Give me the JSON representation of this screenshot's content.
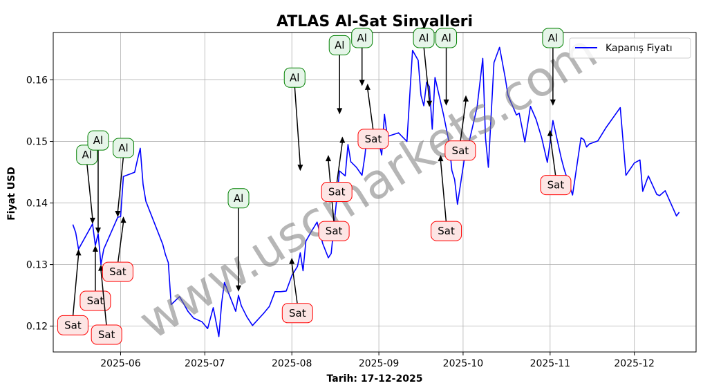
{
  "chart_data": {
    "type": "line",
    "title": "ATLAS Al-Sat Sinyalleri",
    "xlabel": "Tarih: 17-12-2025",
    "ylabel": "Fiyat USD",
    "legend": {
      "placement": "top-right",
      "entries": [
        "Kapanış Fiyatı"
      ]
    },
    "watermark": "www.uscmarkets.com",
    "grid": true,
    "line_color": "#0000ff",
    "xlim": [
      "2025-05-08",
      "2025-12-23"
    ],
    "ylim": [
      0.1158,
      0.1677
    ],
    "x_ticks": [
      "2025-06",
      "2025-07",
      "2025-08",
      "2025-09",
      "2025-10",
      "2025-11",
      "2025-12"
    ],
    "y_ticks": [
      0.12,
      0.13,
      0.14,
      0.15,
      0.16
    ],
    "series": [
      {
        "name": "Kapanış Fiyatı",
        "x": [
          "2025-05-15",
          "2025-05-16",
          "2025-05-17",
          "2025-05-22",
          "2025-05-23",
          "2025-05-24",
          "2025-05-25",
          "2025-05-26",
          "2025-05-31",
          "2025-06-01",
          "2025-06-02",
          "2025-06-06",
          "2025-06-07",
          "2025-06-08",
          "2025-06-09",
          "2025-06-10",
          "2025-06-16",
          "2025-06-17",
          "2025-06-18",
          "2025-06-19",
          "2025-06-22",
          "2025-06-25",
          "2025-06-27",
          "2025-06-30",
          "2025-07-02",
          "2025-07-04",
          "2025-07-06",
          "2025-07-07",
          "2025-07-08",
          "2025-07-12",
          "2025-07-13",
          "2025-07-14",
          "2025-07-16",
          "2025-07-18",
          "2025-07-22",
          "2025-07-24",
          "2025-07-26",
          "2025-07-28",
          "2025-07-30",
          "2025-08-01",
          "2025-08-03",
          "2025-08-04",
          "2025-08-05",
          "2025-08-06",
          "2025-08-08",
          "2025-08-10",
          "2025-08-12",
          "2025-08-14",
          "2025-08-15",
          "2025-08-18",
          "2025-08-20",
          "2025-08-21",
          "2025-08-22",
          "2025-08-24",
          "2025-08-26",
          "2025-08-27",
          "2025-08-28",
          "2025-08-29",
          "2025-09-01",
          "2025-09-02",
          "2025-09-03",
          "2025-09-04",
          "2025-09-08",
          "2025-09-11",
          "2025-09-13",
          "2025-09-15",
          "2025-09-16",
          "2025-09-17",
          "2025-09-18",
          "2025-09-19",
          "2025-09-20",
          "2025-09-21",
          "2025-09-24",
          "2025-09-26",
          "2025-09-27",
          "2025-09-28",
          "2025-09-29",
          "2025-10-02",
          "2025-10-03",
          "2025-10-06",
          "2025-10-08",
          "2025-10-09",
          "2025-10-10",
          "2025-10-12",
          "2025-10-14",
          "2025-10-16",
          "2025-10-17",
          "2025-10-20",
          "2025-10-21",
          "2025-10-23",
          "2025-10-25",
          "2025-10-27",
          "2025-10-29",
          "2025-10-31",
          "2025-11-02",
          "2025-11-05",
          "2025-11-06",
          "2025-11-09",
          "2025-11-12",
          "2025-11-13",
          "2025-11-14",
          "2025-11-15",
          "2025-11-18",
          "2025-11-21",
          "2025-11-26",
          "2025-11-28",
          "2025-12-01",
          "2025-12-03",
          "2025-12-04",
          "2025-12-06",
          "2025-12-09",
          "2025-12-10",
          "2025-12-12",
          "2025-12-16",
          "2025-12-17"
        ],
        "values": [
          0.1365,
          0.1352,
          0.1325,
          0.1366,
          0.1331,
          0.135,
          0.13,
          0.1325,
          0.1377,
          0.1378,
          0.1443,
          0.145,
          0.147,
          0.1489,
          0.143,
          0.1403,
          0.1333,
          0.1316,
          0.1303,
          0.1235,
          0.1248,
          0.1224,
          0.1213,
          0.1207,
          0.1196,
          0.123,
          0.1183,
          0.1238,
          0.1271,
          0.1224,
          0.125,
          0.1233,
          0.1215,
          0.1201,
          0.1221,
          0.1232,
          0.1256,
          0.1256,
          0.1257,
          0.1282,
          0.1297,
          0.1319,
          0.129,
          0.1338,
          0.1354,
          0.1369,
          0.1334,
          0.1311,
          0.1318,
          0.1452,
          0.1444,
          0.1495,
          0.1467,
          0.1458,
          0.1445,
          0.1476,
          0.1519,
          0.1497,
          0.1499,
          0.1478,
          0.1544,
          0.1508,
          0.1514,
          0.15,
          0.1648,
          0.1632,
          0.1575,
          0.1558,
          0.1596,
          0.1589,
          0.152,
          0.1604,
          0.1544,
          0.1499,
          0.1453,
          0.1438,
          0.1398,
          0.1488,
          0.1496,
          0.1556,
          0.1635,
          0.1505,
          0.1458,
          0.1628,
          0.1653,
          0.1604,
          0.1575,
          0.1543,
          0.1546,
          0.1499,
          0.1557,
          0.1536,
          0.1506,
          0.1466,
          0.1534,
          0.1472,
          0.1455,
          0.1413,
          0.1506,
          0.1503,
          0.1491,
          0.1496,
          0.1501,
          0.1523,
          0.1555,
          0.1445,
          0.1465,
          0.147,
          0.1419,
          0.1444,
          0.1414,
          0.1412,
          0.142,
          0.1379,
          0.1385
        ]
      }
    ],
    "annotations": [
      {
        "label": "Al",
        "type": "buy",
        "x": "2025-05-22",
        "y": 0.1366
      },
      {
        "label": "Al",
        "type": "buy",
        "x": "2025-05-24",
        "y": 0.135
      },
      {
        "label": "Al",
        "type": "buy",
        "x": "2025-05-31",
        "y": 0.1377
      },
      {
        "label": "Sat",
        "type": "sell",
        "x": "2025-05-17",
        "y": 0.1325
      },
      {
        "label": "Sat",
        "type": "sell",
        "x": "2025-05-23",
        "y": 0.1331
      },
      {
        "label": "Sat",
        "type": "sell",
        "x": "2025-05-25",
        "y": 0.13
      },
      {
        "label": "Sat",
        "type": "sell",
        "x": "2025-06-02",
        "y": 0.1378
      },
      {
        "label": "Al",
        "type": "buy",
        "x": "2025-07-13",
        "y": 0.1256
      },
      {
        "label": "Sat",
        "type": "sell",
        "x": "2025-08-01",
        "y": 0.1311
      },
      {
        "label": "Al",
        "type": "buy",
        "x": "2025-08-04",
        "y": 0.1452
      },
      {
        "label": "Al",
        "type": "buy",
        "x": "2025-08-18",
        "y": 0.1544
      },
      {
        "label": "Sat",
        "type": "sell",
        "x": "2025-08-14",
        "y": 0.1478
      },
      {
        "label": "Sat",
        "type": "sell",
        "x": "2025-08-19",
        "y": 0.1508
      },
      {
        "label": "Al",
        "type": "buy",
        "x": "2025-08-26",
        "y": 0.159
      },
      {
        "label": "Sat",
        "type": "sell",
        "x": "2025-08-28",
        "y": 0.1594
      },
      {
        "label": "Al",
        "type": "buy",
        "x": "2025-09-19",
        "y": 0.1556
      },
      {
        "label": "Al",
        "type": "buy",
        "x": "2025-09-25",
        "y": 0.1558
      },
      {
        "label": "Sat",
        "type": "sell",
        "x": "2025-09-23",
        "y": 0.1478
      },
      {
        "label": "Sat",
        "type": "sell",
        "x": "2025-10-02",
        "y": 0.1575
      },
      {
        "label": "Al",
        "type": "buy",
        "x": "2025-11-02",
        "y": 0.1558
      },
      {
        "label": "Sat",
        "type": "sell",
        "x": "2025-11-01",
        "y": 0.1519
      }
    ]
  }
}
